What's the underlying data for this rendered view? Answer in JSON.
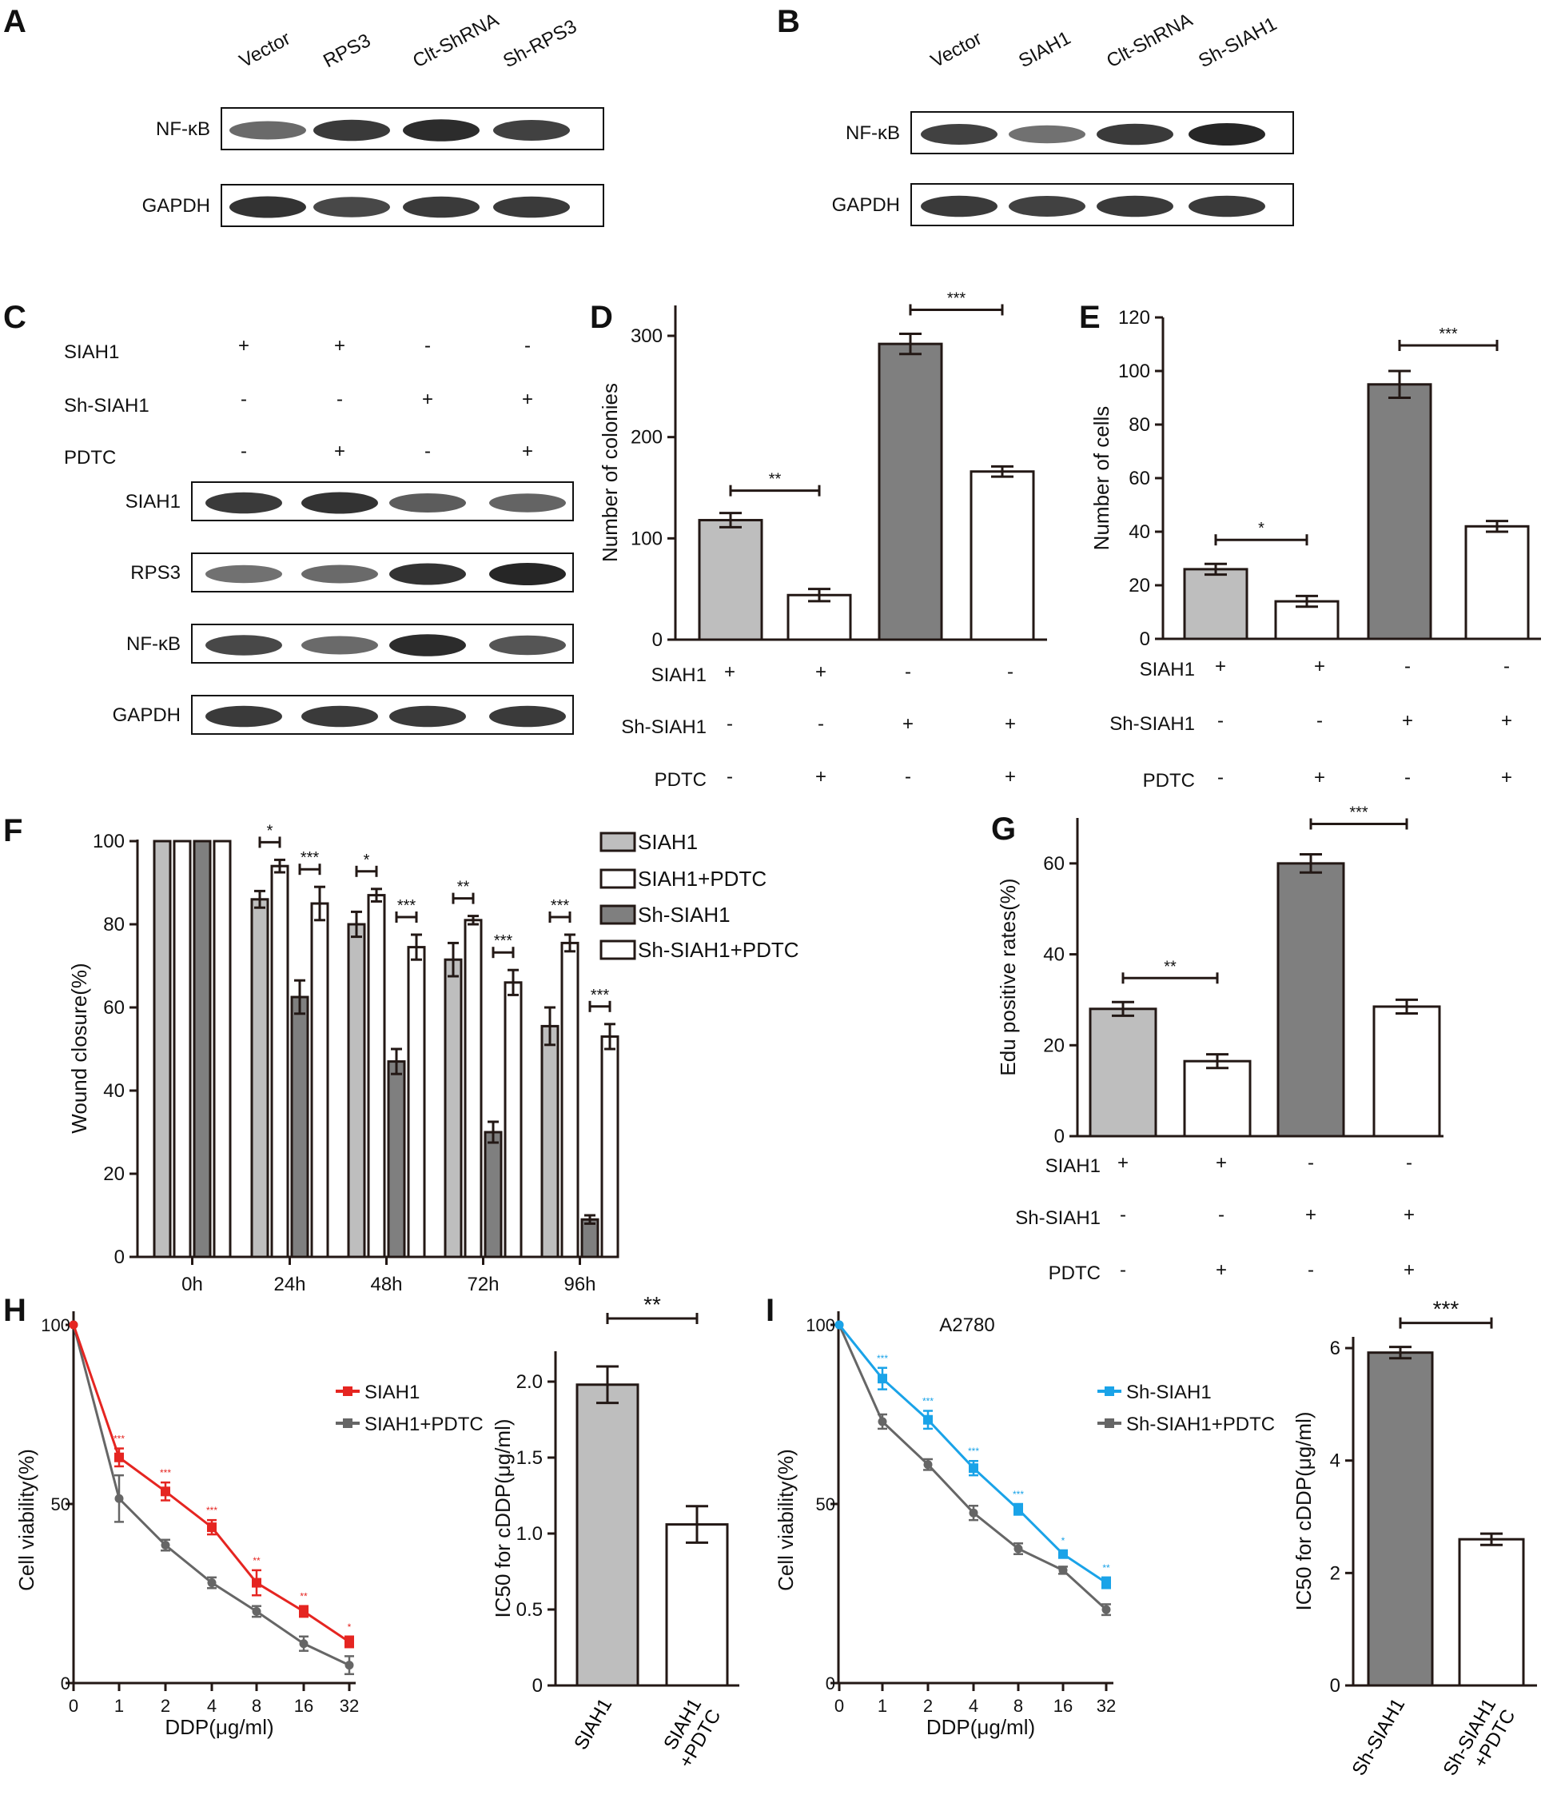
{
  "colors": {
    "light_gray": "#bebebe",
    "dark_gray": "#7f7f7f",
    "white": "#ffffff",
    "red": "#e52521",
    "blue": "#1aa3e8",
    "line_gray": "#666666",
    "stroke": "#231815"
  },
  "panels": {
    "A": {
      "letter": "A",
      "lanes": [
        "Vector",
        "RPS3",
        "Clt-ShRNA",
        "Sh-RPS3"
      ],
      "bands": [
        "NF-κB",
        "GAPDH"
      ]
    },
    "B": {
      "letter": "B",
      "lanes": [
        "Vector",
        "SIAH1",
        "Clt-ShRNA",
        "Sh-SIAH1"
      ],
      "bands": [
        "NF-κB",
        "GAPDH"
      ]
    },
    "C": {
      "letter": "C",
      "conditions": [
        {
          "label": "SIAH1",
          "marks": [
            "+",
            "+",
            "-",
            "-"
          ]
        },
        {
          "label": "Sh-SIAH1",
          "marks": [
            "-",
            "-",
            "+",
            "+"
          ]
        },
        {
          "label": "PDTC",
          "marks": [
            "-",
            "+",
            "-",
            "+"
          ]
        }
      ],
      "bands": [
        "SIAH1",
        "RPS3",
        "NF-κB",
        "GAPDH"
      ]
    }
  },
  "chart_data": [
    {
      "panel": "D",
      "type": "bar",
      "ylabel": "Number of colonies",
      "ylim": [
        0,
        330
      ],
      "yticks": [
        0,
        100,
        200,
        300
      ],
      "values": [
        118,
        44,
        292,
        166
      ],
      "errors": [
        7,
        6,
        10,
        5
      ],
      "bar_colors": [
        "light_gray",
        "white",
        "dark_gray",
        "white"
      ],
      "significance": [
        {
          "bars": [
            0,
            1
          ],
          "label": "**"
        },
        {
          "bars": [
            2,
            3
          ],
          "label": "***"
        }
      ],
      "conditions": [
        {
          "label": "SIAH1",
          "marks": [
            "+",
            "+",
            "-",
            "-"
          ]
        },
        {
          "label": "Sh-SIAH1",
          "marks": [
            "-",
            "-",
            "+",
            "+"
          ]
        },
        {
          "label": "PDTC",
          "marks": [
            "-",
            "+",
            "-",
            "+"
          ]
        }
      ]
    },
    {
      "panel": "E",
      "type": "bar",
      "ylabel": "Number of cells",
      "ylim": [
        0,
        120
      ],
      "yticks": [
        0,
        20,
        40,
        60,
        80,
        100,
        120
      ],
      "values": [
        26,
        14,
        95,
        42
      ],
      "errors": [
        2,
        2,
        5,
        2
      ],
      "bar_colors": [
        "light_gray",
        "white",
        "dark_gray",
        "white"
      ],
      "significance": [
        {
          "bars": [
            0,
            1
          ],
          "label": "*"
        },
        {
          "bars": [
            2,
            3
          ],
          "label": "***"
        }
      ],
      "conditions": [
        {
          "label": "SIAH1",
          "marks": [
            "+",
            "+",
            "-",
            "-"
          ]
        },
        {
          "label": "Sh-SIAH1",
          "marks": [
            "-",
            "-",
            "+",
            "+"
          ]
        },
        {
          "label": "PDTC",
          "marks": [
            "-",
            "+",
            "-",
            "+"
          ]
        }
      ]
    },
    {
      "panel": "F",
      "type": "bar",
      "ylabel": "Wound closure(%)",
      "ylim": [
        0,
        100
      ],
      "yticks": [
        0,
        20,
        40,
        60,
        80,
        100
      ],
      "categories": [
        "0h",
        "24h",
        "48h",
        "72h",
        "96h"
      ],
      "legend_position": "top-right",
      "series": [
        {
          "name": "SIAH1",
          "color": "light_gray",
          "values": [
            100,
            86,
            80,
            71.5,
            55.5
          ],
          "errors": [
            0,
            2,
            3,
            4,
            4.5
          ]
        },
        {
          "name": "SIAH1+PDTC",
          "color": "white",
          "values": [
            100,
            94,
            87,
            81,
            75.5
          ],
          "errors": [
            0,
            1.5,
            1.5,
            1,
            2
          ]
        },
        {
          "name": "Sh-SIAH1",
          "color": "dark_gray",
          "values": [
            100,
            62.5,
            47,
            30,
            9
          ],
          "errors": [
            0,
            4,
            3,
            2.5,
            1
          ]
        },
        {
          "name": "Sh-SIAH1+PDTC",
          "color": "white",
          "values": [
            100,
            85,
            74.5,
            66,
            53
          ],
          "errors": [
            0,
            4,
            3,
            3,
            3
          ]
        }
      ],
      "significance": [
        {
          "category": 1,
          "series": [
            0,
            1
          ],
          "label": "*"
        },
        {
          "category": 1,
          "series": [
            2,
            3
          ],
          "label": "***"
        },
        {
          "category": 2,
          "series": [
            0,
            1
          ],
          "label": "*"
        },
        {
          "category": 2,
          "series": [
            2,
            3
          ],
          "label": "***"
        },
        {
          "category": 3,
          "series": [
            0,
            1
          ],
          "label": "**"
        },
        {
          "category": 3,
          "series": [
            2,
            3
          ],
          "label": "***"
        },
        {
          "category": 4,
          "series": [
            0,
            1
          ],
          "label": "***"
        },
        {
          "category": 4,
          "series": [
            2,
            3
          ],
          "label": "***"
        }
      ]
    },
    {
      "panel": "G",
      "type": "bar",
      "ylabel": "Edu positive rates(%)",
      "ylim": [
        0,
        70
      ],
      "yticks": [
        0,
        20,
        40,
        60
      ],
      "values": [
        28,
        16.5,
        60,
        28.5
      ],
      "errors": [
        1.5,
        1.5,
        2,
        1.5
      ],
      "bar_colors": [
        "light_gray",
        "white",
        "dark_gray",
        "white"
      ],
      "significance": [
        {
          "bars": [
            0,
            1
          ],
          "label": "**"
        },
        {
          "bars": [
            2,
            3
          ],
          "label": "***"
        }
      ],
      "conditions": [
        {
          "label": "SIAH1",
          "marks": [
            "+",
            "+",
            "-",
            "-"
          ]
        },
        {
          "label": "Sh-SIAH1",
          "marks": [
            "-",
            "-",
            "+",
            "+"
          ]
        },
        {
          "label": "PDTC",
          "marks": [
            "-",
            "+",
            "-",
            "+"
          ]
        }
      ]
    },
    {
      "panel": "H",
      "type": "line",
      "xlabel": "DDP(μg/ml)",
      "ylabel": "Cell viability(%)",
      "x": [
        "0",
        "1",
        "2",
        "4",
        "8",
        "16",
        "32"
      ],
      "ylim": [
        0,
        100
      ],
      "yticks": [
        0,
        50,
        100
      ],
      "legend_position": "right",
      "series": [
        {
          "name": "SIAH1",
          "color": "red",
          "values": [
            100,
            63,
            53.5,
            43.5,
            28,
            20,
            11.5
          ],
          "errors": [
            0,
            2.5,
            2.5,
            2,
            3.5,
            1.5,
            1.5
          ],
          "stars": [
            "",
            "***",
            "***",
            "***",
            "**",
            "**",
            "*"
          ]
        },
        {
          "name": "SIAH1+PDTC",
          "color": "line_gray",
          "values": [
            100,
            51.5,
            38.5,
            28,
            20,
            11,
            5
          ],
          "errors": [
            0,
            6.5,
            1.5,
            1.5,
            1.5,
            2,
            2.5
          ]
        }
      ]
    },
    {
      "panel": "H",
      "type": "bar",
      "ylabel": "IC50 for cDDP(μg/ml)",
      "ylim": [
        0,
        2.2
      ],
      "yticks": [
        0,
        0.5,
        1.0,
        1.5,
        2.0
      ],
      "ytick_labels": [
        "0",
        "0.5",
        "1.0",
        "1.5",
        "2.0"
      ],
      "categories": [
        "SIAH1",
        "SIAH1\n+PDTC"
      ],
      "values": [
        1.98,
        1.06
      ],
      "errors": [
        0.12,
        0.12
      ],
      "bar_colors": [
        "light_gray",
        "white"
      ],
      "significance": [
        {
          "bars": [
            0,
            1
          ],
          "label": "**"
        }
      ]
    },
    {
      "panel": "I",
      "type": "line",
      "title": "A2780",
      "xlabel": "DDP(μg/ml)",
      "ylabel": "Cell viability(%)",
      "x": [
        "0",
        "1",
        "2",
        "4",
        "8",
        "16",
        "32"
      ],
      "ylim": [
        0,
        100
      ],
      "yticks": [
        0,
        50,
        100
      ],
      "legend_position": "right",
      "series": [
        {
          "name": "Sh-SIAH1",
          "color": "blue",
          "values": [
            100,
            85,
            73.5,
            60,
            48.5,
            36,
            28
          ],
          "errors": [
            0,
            3,
            2.5,
            2,
            1.5,
            1,
            1.5
          ],
          "stars": [
            "",
            "***",
            "***",
            "***",
            "***",
            "*",
            "**"
          ]
        },
        {
          "name": "Sh-SIAH1+PDTC",
          "color": "line_gray",
          "values": [
            100,
            73,
            61,
            47.5,
            37.5,
            31.5,
            20.5
          ],
          "errors": [
            0,
            2,
            1.5,
            2,
            1.5,
            1,
            1.5
          ]
        }
      ]
    },
    {
      "panel": "I",
      "type": "bar",
      "ylabel": "IC50 for cDDP(μg/ml)",
      "ylim": [
        0,
        6.2
      ],
      "yticks": [
        0,
        2,
        4,
        6
      ],
      "ytick_labels": [
        "0",
        "2",
        "4",
        "6"
      ],
      "categories": [
        "Sh-SIAH1",
        "Sh-SIAH1\n+PDTC"
      ],
      "values": [
        5.92,
        2.6
      ],
      "errors": [
        0.1,
        0.1
      ],
      "bar_colors": [
        "dark_gray",
        "white"
      ],
      "significance": [
        {
          "bars": [
            0,
            1
          ],
          "label": "***"
        }
      ]
    }
  ]
}
